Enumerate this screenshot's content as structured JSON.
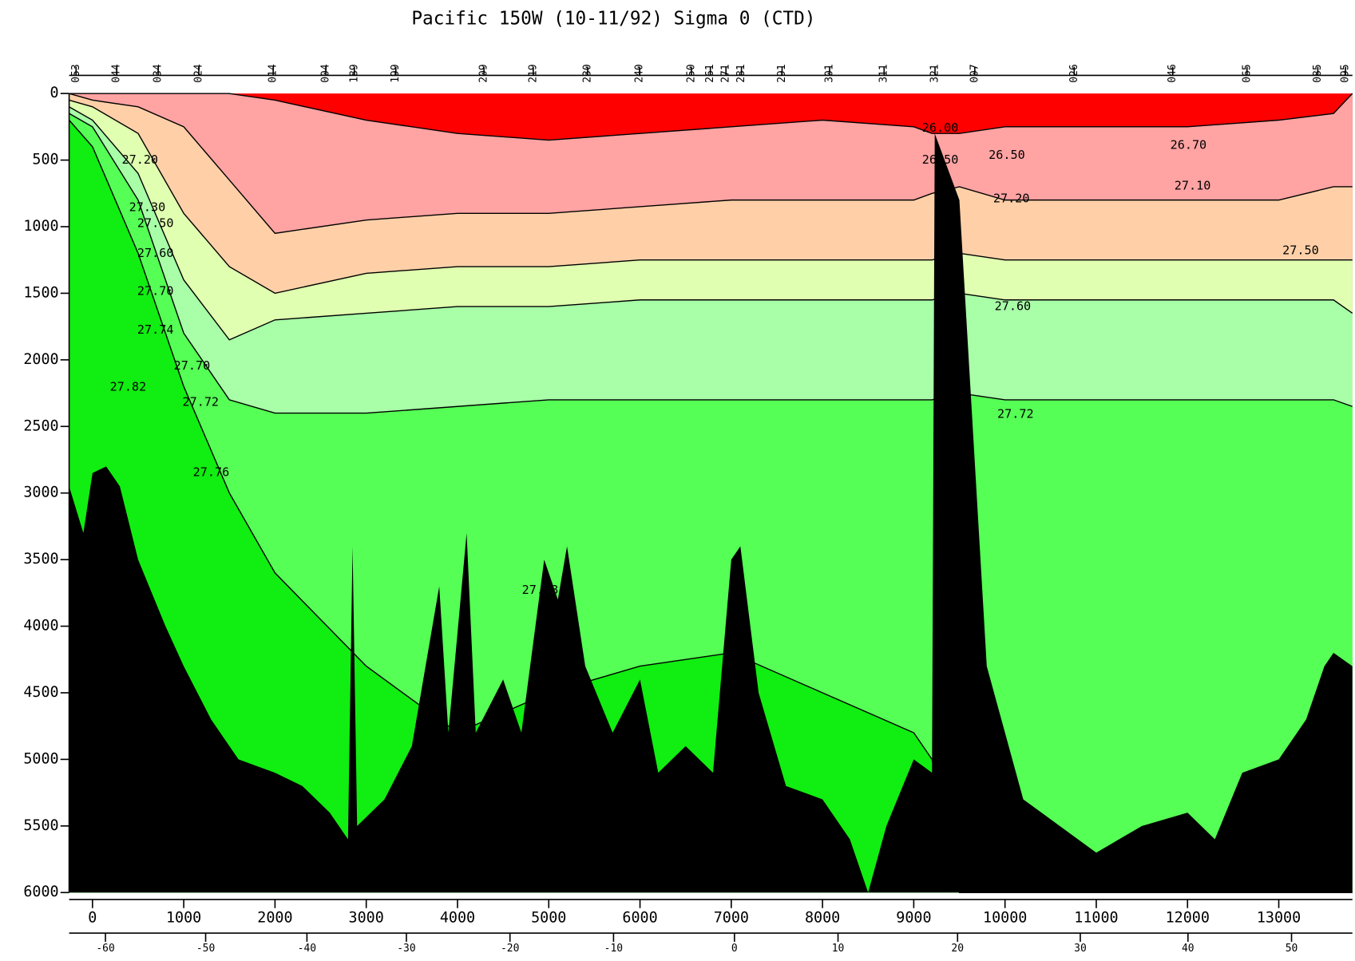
{
  "chart_data": {
    "type": "section",
    "title": "Pacific 150W (10-11/92) Sigma 0 (CTD)",
    "xlim": [
      -256,
      13807
    ],
    "ylim": [
      0,
      6000
    ],
    "xticks": [
      0,
      1000,
      2000,
      3000,
      4000,
      5000,
      6000,
      7000,
      8000,
      9000,
      10000,
      11000,
      12000,
      13000
    ],
    "yticks": [
      0,
      500,
      1000,
      1500,
      2000,
      2500,
      3000,
      3500,
      4000,
      4500,
      5000,
      5500,
      6000
    ],
    "lat_ticks": [
      {
        "value": 142,
        "label": "-60"
      },
      {
        "value": 1240,
        "label": "-50"
      },
      {
        "value": 2350,
        "label": "-40"
      },
      {
        "value": 3440,
        "label": "-30"
      },
      {
        "value": 4575,
        "label": "-20"
      },
      {
        "value": 5710,
        "label": "-10"
      },
      {
        "value": 7035,
        "label": "0"
      },
      {
        "value": 8170,
        "label": "10"
      },
      {
        "value": 9480,
        "label": "20"
      },
      {
        "value": 10825,
        "label": "30"
      },
      {
        "value": 12005,
        "label": "40"
      },
      {
        "value": 13140,
        "label": "50"
      }
    ],
    "stations": [
      {
        "value": -180,
        "label": "053"
      },
      {
        "value": 265,
        "label": "044"
      },
      {
        "value": 720,
        "label": "034"
      },
      {
        "value": 1165,
        "label": "024"
      },
      {
        "value": 1980,
        "label": "014"
      },
      {
        "value": 2557,
        "label": "004"
      },
      {
        "value": 2870,
        "label": "189"
      },
      {
        "value": 3324,
        "label": "199"
      },
      {
        "value": 4290,
        "label": "209"
      },
      {
        "value": 4830,
        "label": "219"
      },
      {
        "value": 5426,
        "label": "230"
      },
      {
        "value": 5995,
        "label": "240"
      },
      {
        "value": 6563,
        "label": "250"
      },
      {
        "value": 6771,
        "label": "261"
      },
      {
        "value": 6942,
        "label": "271"
      },
      {
        "value": 7112,
        "label": "281"
      },
      {
        "value": 7557,
        "label": "291"
      },
      {
        "value": 8078,
        "label": "301"
      },
      {
        "value": 8675,
        "label": "311"
      },
      {
        "value": 9233,
        "label": "321"
      },
      {
        "value": 9669,
        "label": "007"
      },
      {
        "value": 10758,
        "label": "026"
      },
      {
        "value": 11838,
        "label": "046"
      },
      {
        "value": 12652,
        "label": "065"
      },
      {
        "value": 13428,
        "label": "085"
      },
      {
        "value": 13731,
        "label": "095"
      }
    ],
    "surface_color": "#ff0000",
    "x": [
      -256,
      0,
      500,
      1000,
      1500,
      2000,
      3000,
      4000,
      5000,
      6000,
      7000,
      8000,
      9000,
      9200,
      9500,
      10000,
      11000,
      12000,
      13000,
      13600,
      13807
    ],
    "series": [
      {
        "color": "#ffa3a3",
        "values": [
          0,
          0,
          0,
          0,
          0,
          50,
          200,
          300,
          350,
          300,
          250,
          200,
          250,
          300,
          300,
          250,
          250,
          250,
          200,
          150,
          0
        ]
      },
      {
        "color": "#ffd0a8",
        "values": [
          0,
          50,
          100,
          250,
          650,
          1050,
          950,
          900,
          900,
          850,
          800,
          800,
          800,
          750,
          700,
          800,
          800,
          800,
          800,
          700,
          700
        ]
      },
      {
        "color": "#e0ffb0",
        "values": [
          50,
          100,
          300,
          900,
          1300,
          1500,
          1350,
          1300,
          1300,
          1250,
          1250,
          1250,
          1250,
          1250,
          1200,
          1250,
          1250,
          1250,
          1250,
          1250,
          1250
        ]
      },
      {
        "color": "#a8ffa8",
        "values": [
          100,
          200,
          600,
          1400,
          1850,
          1700,
          1650,
          1600,
          1600,
          1550,
          1550,
          1550,
          1550,
          1550,
          1500,
          1550,
          1550,
          1550,
          1550,
          1550,
          1650
        ]
      },
      {
        "color": "#55ff55",
        "values": [
          150,
          250,
          800,
          1800,
          2300,
          2400,
          2400,
          2350,
          2300,
          2300,
          2300,
          2300,
          2300,
          2300,
          2250,
          2300,
          2300,
          2300,
          2300,
          2300,
          2350
        ]
      },
      {
        "color": "#11ee11",
        "values": [
          200,
          400,
          1200,
          2200,
          3000,
          3600,
          4300,
          4800,
          4500,
          4300,
          4200,
          4500,
          4800,
          5000,
          6000,
          6000,
          6000,
          6000,
          6000,
          6000,
          6000
        ]
      }
    ],
    "bathymetry": {
      "color": "#000000",
      "x": [
        -256,
        -100,
        0,
        150,
        300,
        500,
        800,
        1000,
        1300,
        1600,
        2000,
        2300,
        2600,
        2800,
        2850,
        2900,
        3200,
        3500,
        3800,
        3900,
        4100,
        4200,
        4500,
        4700,
        4950,
        5100,
        5200,
        5400,
        5700,
        6000,
        6200,
        6500,
        6800,
        7000,
        7100,
        7300,
        7600,
        8000,
        8300,
        8500,
        8700,
        9000,
        9200,
        9230,
        9500,
        9800,
        10000,
        10200,
        10600,
        11000,
        11500,
        12000,
        12300,
        12600,
        13000,
        13300,
        13500,
        13600,
        13807
      ],
      "depth": [
        2950,
        3300,
        2850,
        2800,
        2950,
        3500,
        4000,
        4300,
        4700,
        5000,
        5100,
        5200,
        5400,
        5600,
        3400,
        5500,
        5300,
        4900,
        3700,
        4800,
        3300,
        4800,
        4400,
        4800,
        3500,
        3800,
        3400,
        4300,
        4800,
        4400,
        5100,
        4900,
        5100,
        3500,
        3400,
        4500,
        5200,
        5300,
        5600,
        6000,
        5500,
        5000,
        5100,
        300,
        800,
        4300,
        4800,
        5300,
        5500,
        5700,
        5500,
        5400,
        5600,
        5100,
        5000,
        4700,
        4300,
        4200,
        4300
      ]
    },
    "contour_labels": [
      {
        "text": "27.20",
        "x": 520,
        "depth": 500
      },
      {
        "text": "27.30",
        "x": 600,
        "depth": 855
      },
      {
        "text": "27.50",
        "x": 690,
        "depth": 975
      },
      {
        "text": "27.60",
        "x": 690,
        "depth": 1200
      },
      {
        "text": "27.70",
        "x": 690,
        "depth": 1485
      },
      {
        "text": "27.74",
        "x": 690,
        "depth": 1775
      },
      {
        "text": "27.70",
        "x": 1090,
        "depth": 2045
      },
      {
        "text": "27.82",
        "x": 390,
        "depth": 2205
      },
      {
        "text": "27.72",
        "x": 1185,
        "depth": 2320
      },
      {
        "text": "27.76",
        "x": 1300,
        "depth": 2845
      },
      {
        "text": "27.78",
        "x": 4905,
        "depth": 3730
      },
      {
        "text": "26.00",
        "x": 9290,
        "depth": 260
      },
      {
        "text": "26.50",
        "x": 9290,
        "depth": 500
      },
      {
        "text": "26.50",
        "x": 10020,
        "depth": 465
      },
      {
        "text": "26.70",
        "x": 12010,
        "depth": 390
      },
      {
        "text": "27.10",
        "x": 12055,
        "depth": 695
      },
      {
        "text": "27.20",
        "x": 10070,
        "depth": 790
      },
      {
        "text": "27.50",
        "x": 13240,
        "depth": 1180
      },
      {
        "text": "27.60",
        "x": 10085,
        "depth": 1600
      },
      {
        "text": "27.72",
        "x": 10115,
        "depth": 2410
      }
    ]
  }
}
